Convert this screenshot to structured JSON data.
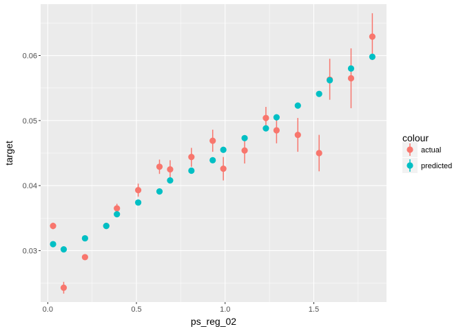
{
  "chart_data": {
    "type": "scatter",
    "title": "",
    "xlabel": "ps_reg_02",
    "ylabel": "target",
    "xlim": [
      -0.04,
      1.91
    ],
    "ylim": [
      0.0221,
      0.0679
    ],
    "grid": true,
    "x_major_ticks": [
      0.0,
      0.5,
      1.0,
      1.5
    ],
    "x_minor_ticks": [
      0.25,
      0.75,
      1.25,
      1.75
    ],
    "y_major_ticks": [
      0.03,
      0.04,
      0.05,
      0.06
    ],
    "y_minor_ticks": [
      0.025,
      0.035,
      0.045,
      0.055,
      0.065
    ],
    "x_tick_labels": [
      "0.0",
      "0.5",
      "1.0",
      "1.5"
    ],
    "y_tick_labels": [
      "0.03",
      "0.04",
      "0.05",
      "0.06"
    ],
    "legend": {
      "title": "colour",
      "placement": "right"
    },
    "series": [
      {
        "name": "actual",
        "color": "#F8766D",
        "points": [
          {
            "x": 0.03,
            "y": 0.0338,
            "lo": 0.0333,
            "hi": 0.0343
          },
          {
            "x": 0.09,
            "y": 0.0243,
            "lo": 0.0234,
            "hi": 0.0252
          },
          {
            "x": 0.21,
            "y": 0.029,
            "lo": 0.0286,
            "hi": 0.0294
          },
          {
            "x": 0.33,
            "y": 0.0338,
            "lo": 0.0336,
            "hi": 0.034
          },
          {
            "x": 0.39,
            "y": 0.0365,
            "lo": 0.0358,
            "hi": 0.0372
          },
          {
            "x": 0.51,
            "y": 0.0393,
            "lo": 0.0383,
            "hi": 0.0403
          },
          {
            "x": 0.63,
            "y": 0.0429,
            "lo": 0.0418,
            "hi": 0.044
          },
          {
            "x": 0.69,
            "y": 0.0425,
            "lo": 0.0412,
            "hi": 0.0439
          },
          {
            "x": 0.81,
            "y": 0.0444,
            "lo": 0.0429,
            "hi": 0.0458
          },
          {
            "x": 0.93,
            "y": 0.0469,
            "lo": 0.0452,
            "hi": 0.0486
          },
          {
            "x": 0.99,
            "y": 0.0426,
            "lo": 0.0408,
            "hi": 0.0444
          },
          {
            "x": 1.11,
            "y": 0.0454,
            "lo": 0.0434,
            "hi": 0.0474
          },
          {
            "x": 1.23,
            "y": 0.0504,
            "lo": 0.0488,
            "hi": 0.0521
          },
          {
            "x": 1.29,
            "y": 0.0485,
            "lo": 0.0465,
            "hi": 0.0506
          },
          {
            "x": 1.41,
            "y": 0.0478,
            "lo": 0.0452,
            "hi": 0.0504
          },
          {
            "x": 1.53,
            "y": 0.045,
            "lo": 0.0422,
            "hi": 0.0478
          },
          {
            "x": 1.59,
            "y": 0.0563,
            "lo": 0.0532,
            "hi": 0.0595
          },
          {
            "x": 1.71,
            "y": 0.0565,
            "lo": 0.0519,
            "hi": 0.0611
          },
          {
            "x": 1.83,
            "y": 0.0629,
            "lo": 0.0593,
            "hi": 0.0665
          }
        ]
      },
      {
        "name": "predicted",
        "color": "#00BFC4",
        "points": [
          {
            "x": 0.03,
            "y": 0.031
          },
          {
            "x": 0.09,
            "y": 0.0302
          },
          {
            "x": 0.21,
            "y": 0.0319
          },
          {
            "x": 0.33,
            "y": 0.0338
          },
          {
            "x": 0.39,
            "y": 0.0356
          },
          {
            "x": 0.51,
            "y": 0.0374
          },
          {
            "x": 0.63,
            "y": 0.0391
          },
          {
            "x": 0.69,
            "y": 0.0408
          },
          {
            "x": 0.81,
            "y": 0.0423
          },
          {
            "x": 0.93,
            "y": 0.0439
          },
          {
            "x": 0.99,
            "y": 0.0455
          },
          {
            "x": 1.11,
            "y": 0.0473
          },
          {
            "x": 1.23,
            "y": 0.0488
          },
          {
            "x": 1.29,
            "y": 0.0505
          },
          {
            "x": 1.41,
            "y": 0.0523
          },
          {
            "x": 1.53,
            "y": 0.0541
          },
          {
            "x": 1.59,
            "y": 0.0562
          },
          {
            "x": 1.71,
            "y": 0.058
          },
          {
            "x": 1.83,
            "y": 0.0598
          }
        ]
      }
    ]
  }
}
